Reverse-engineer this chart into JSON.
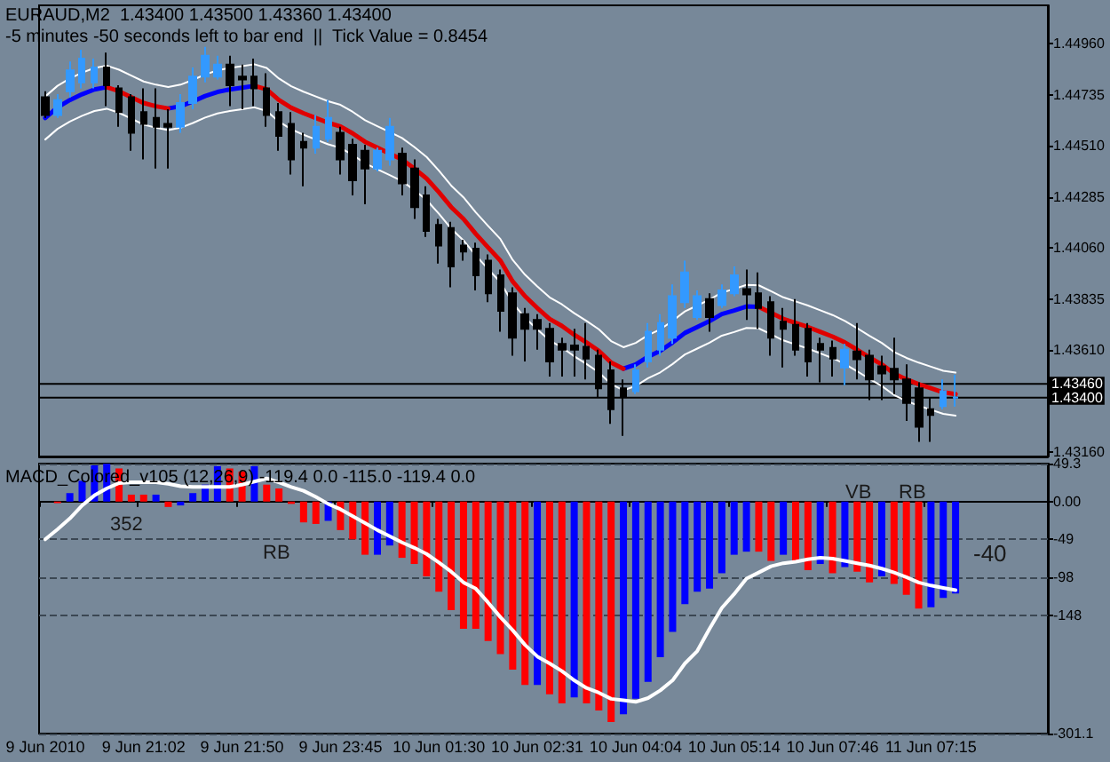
{
  "chart_data": [
    {
      "type": "candlestick",
      "title": "EURAUD,M2  1.43400 1.43500 1.43360 1.43400",
      "subtitle": "-5 minutes -50 seconds left to bar end  ||  Tick Value = 0.8454",
      "categories": [
        null,
        null,
        null,
        null,
        null,
        null,
        null,
        null,
        null,
        null,
        null,
        null,
        null,
        null,
        null,
        null,
        null,
        null,
        null,
        null,
        null,
        null,
        null,
        null,
        null,
        null,
        null,
        null,
        null,
        null,
        null,
        null,
        null,
        null,
        null,
        null,
        null,
        null,
        null,
        null,
        null,
        null,
        null,
        null,
        null,
        null,
        null,
        null,
        null,
        null,
        null,
        null,
        null,
        null,
        null,
        null,
        null,
        null,
        null,
        null,
        null,
        null,
        null,
        null,
        null,
        null,
        null,
        null,
        null,
        null,
        null,
        null,
        null,
        null,
        null
      ],
      "ohlc": [
        [
          1.44725,
          1.44751,
          1.44633,
          1.44646
        ],
        [
          1.44646,
          1.44738,
          1.44633,
          1.44712
        ],
        [
          1.44751,
          1.44882,
          1.44725,
          1.44843
        ],
        [
          1.4479,
          1.44934,
          1.44764,
          1.44895
        ],
        [
          1.4479,
          1.44895,
          1.44764,
          1.44856
        ],
        [
          1.44856,
          1.44921,
          1.44685,
          1.44777
        ],
        [
          1.44764,
          1.44777,
          1.44594,
          1.44659
        ],
        [
          1.44725,
          1.44738,
          1.44489,
          1.44568
        ],
        [
          1.44659,
          1.44764,
          1.4445,
          1.44607
        ],
        [
          1.44633,
          1.44764,
          1.4441,
          1.44594
        ],
        [
          1.44607,
          1.44672,
          1.4441,
          1.44594
        ],
        [
          1.44594,
          1.44738,
          1.44568,
          1.44699
        ],
        [
          1.44699,
          1.44856,
          1.44672,
          1.44816
        ],
        [
          1.44816,
          1.44947,
          1.4479,
          1.44908
        ],
        [
          1.44816,
          1.44908,
          1.44803,
          1.44869
        ],
        [
          1.44869,
          1.44908,
          1.44685,
          1.44777
        ],
        [
          1.44816,
          1.44869,
          1.44672,
          1.44803
        ],
        [
          1.44816,
          1.44895,
          1.44685,
          1.44764
        ],
        [
          1.44764,
          1.4483,
          1.44594,
          1.44646
        ],
        [
          1.44659,
          1.44699,
          1.44489,
          1.44554
        ],
        [
          1.44607,
          1.44659,
          1.44384,
          1.4445
        ],
        [
          1.44528,
          1.44568,
          1.44332,
          1.44502
        ],
        [
          1.44502,
          1.44646,
          1.44476,
          1.44594
        ],
        [
          1.44541,
          1.44712,
          1.44528,
          1.44633
        ],
        [
          1.44568,
          1.44594,
          1.44384,
          1.4445
        ],
        [
          1.44515,
          1.44541,
          1.44292,
          1.44358
        ],
        [
          1.44489,
          1.44515,
          1.44253,
          1.4441
        ],
        [
          1.4441,
          1.44502,
          1.44397,
          1.44489
        ],
        [
          1.4445,
          1.44633,
          1.44423,
          1.44594
        ],
        [
          1.44476,
          1.44502,
          1.44292,
          1.44345
        ],
        [
          1.4441,
          1.4445,
          1.44188,
          1.4424
        ],
        [
          1.44292,
          1.44332,
          1.44109,
          1.44135
        ],
        [
          1.44161,
          1.44188,
          1.43991,
          1.4407
        ],
        [
          1.44148,
          1.44175,
          1.43886,
          1.43978
        ],
        [
          1.4407,
          1.44096,
          1.44004,
          1.44044
        ],
        [
          1.44057,
          1.44083,
          1.43873,
          1.43939
        ],
        [
          1.44004,
          1.44031,
          1.43821,
          1.4386
        ],
        [
          1.43939,
          1.43965,
          1.4369,
          1.43782
        ],
        [
          1.4386,
          1.43886,
          1.43585,
          1.43664
        ],
        [
          1.43768,
          1.43795,
          1.43559,
          1.43703
        ],
        [
          1.43742,
          1.43768,
          1.43611,
          1.43703
        ],
        [
          1.43703,
          1.43729,
          1.43493,
          1.43559
        ],
        [
          1.43637,
          1.43664,
          1.43493,
          1.43611
        ],
        [
          1.4363,
          1.43703,
          1.43493,
          1.43611
        ],
        [
          1.43624,
          1.43729,
          1.4348,
          1.43572
        ],
        [
          1.43585,
          1.43611,
          1.43402,
          1.43441
        ],
        [
          1.4352,
          1.43559,
          1.43284,
          1.43349
        ],
        [
          1.43441,
          1.4348,
          1.43231,
          1.43402
        ],
        [
          1.43428,
          1.43546,
          1.43415,
          1.4352
        ],
        [
          1.43559,
          1.43729,
          1.43533,
          1.4369
        ],
        [
          1.43611,
          1.43768,
          1.43585,
          1.43729
        ],
        [
          1.43664,
          1.43899,
          1.43637,
          1.43847
        ],
        [
          1.43821,
          1.44004,
          1.43795,
          1.43952
        ],
        [
          1.43755,
          1.43873,
          1.43742,
          1.43847
        ],
        [
          1.43834,
          1.4386,
          1.4369,
          1.43755
        ],
        [
          1.43808,
          1.43899,
          1.43795,
          1.43873
        ],
        [
          1.4386,
          1.43978,
          1.43847,
          1.43939
        ],
        [
          1.43878,
          1.43965,
          1.43742,
          1.43855
        ],
        [
          1.4386,
          1.43952,
          1.43703,
          1.43795
        ],
        [
          1.43821,
          1.43847,
          1.43585,
          1.43664
        ],
        [
          1.43734,
          1.43795,
          1.43533,
          1.43703
        ],
        [
          1.43721,
          1.43834,
          1.43585,
          1.43611
        ],
        [
          1.43703,
          1.43729,
          1.43493,
          1.43559
        ],
        [
          1.43637,
          1.43664,
          1.43467,
          1.43611
        ],
        [
          1.43619,
          1.43651,
          1.43493,
          1.43572
        ],
        [
          1.43533,
          1.43637,
          1.43454,
          1.43611
        ],
        [
          1.43603,
          1.43729,
          1.4348,
          1.43569
        ],
        [
          1.43585,
          1.43611,
          1.43389,
          1.4348
        ],
        [
          1.43538,
          1.43585,
          1.43389,
          1.43506
        ],
        [
          1.43527,
          1.43664,
          1.43415,
          1.4348
        ],
        [
          1.4348,
          1.43546,
          1.43297,
          1.43376
        ],
        [
          1.43441,
          1.43467,
          1.43205,
          1.43271
        ],
        [
          1.43349,
          1.43402,
          1.43205,
          1.43323
        ],
        [
          1.43362,
          1.4348,
          1.43349,
          1.43428
        ],
        [
          1.434,
          1.435,
          1.4336,
          1.434
        ]
      ],
      "colors": [
        "#000000",
        "#3399ff",
        "#3399ff",
        "#3399ff",
        "#3399ff",
        "#000000",
        "#000000",
        "#000000",
        "#000000",
        "#000000",
        "#000000",
        "#3399ff",
        "#3399ff",
        "#3399ff",
        "#3399ff",
        "#000000",
        "#000000",
        "#000000",
        "#000000",
        "#000000",
        "#000000",
        "#000000",
        "#3399ff",
        "#3399ff",
        "#000000",
        "#000000",
        "#000000",
        "#3399ff",
        "#3399ff",
        "#000000",
        "#000000",
        "#000000",
        "#000000",
        "#000000",
        "#000000",
        "#000000",
        "#000000",
        "#000000",
        "#000000",
        "#000000",
        "#000000",
        "#000000",
        "#000000",
        "#000000",
        "#000000",
        "#000000",
        "#000000",
        "#000000",
        "#3399ff",
        "#3399ff",
        "#3399ff",
        "#3399ff",
        "#3399ff",
        "#3399ff",
        "#000000",
        "#3399ff",
        "#3399ff",
        "#000000",
        "#000000",
        "#000000",
        "#000000",
        "#000000",
        "#000000",
        "#000000",
        "#000000",
        "#3399ff",
        "#000000",
        "#000000",
        "#000000",
        "#000000",
        "#000000",
        "#000000",
        "#000000",
        "#3399ff",
        "#3399ff"
      ],
      "series": [
        {
          "type": "line",
          "color": "#0000ff",
          "values": [
            1.44633,
            1.4468,
            1.44712,
            1.44738,
            1.44759,
            1.44769,
            null,
            null,
            null,
            null,
            1.44675,
            1.44685,
            1.44706,
            1.4473,
            1.44748,
            1.44759,
            1.44767,
            1.44775,
            null,
            null,
            null,
            null,
            null,
            null,
            null,
            null,
            null,
            null,
            null,
            null,
            null,
            null,
            null,
            null,
            null,
            null,
            null,
            null,
            null,
            null,
            null,
            null,
            null,
            null,
            null,
            null,
            null,
            1.43527,
            1.43546,
            1.4358,
            1.43606,
            1.43643,
            1.43685,
            1.43711,
            1.43737,
            1.43768,
            1.43784,
            1.43802,
            1.438,
            null,
            null,
            null,
            null,
            null,
            null,
            null,
            null,
            null,
            null,
            null,
            null,
            null,
            null,
            null,
            null
          ]
        },
        {
          "type": "line",
          "color": "#e00000",
          "values": [
            null,
            null,
            null,
            null,
            null,
            1.44769,
            1.44751,
            1.44725,
            1.44699,
            1.44685,
            1.44675,
            null,
            null,
            null,
            null,
            null,
            null,
            1.44775,
            1.44759,
            1.44712,
            1.44678,
            1.44654,
            1.44633,
            1.44612,
            1.44596,
            1.44565,
            1.44528,
            1.44502,
            1.44476,
            1.4445,
            1.4441,
            1.44366,
            1.44306,
            1.4424,
            1.44188,
            1.44122,
            1.44062,
            1.44004,
            1.43912,
            1.43847,
            1.43795,
            1.43747,
            1.43716,
            1.43677,
            1.43643,
            1.43606,
            1.43554,
            1.43527,
            null,
            null,
            null,
            null,
            null,
            null,
            null,
            null,
            null,
            null,
            1.438,
            1.43774,
            1.43747,
            1.43729,
            1.43711,
            1.4369,
            1.43669,
            1.43643,
            1.43611,
            1.43577,
            1.43546,
            1.43506,
            1.4348,
            1.43459,
            1.43441,
            1.43423,
            1.43415
          ]
        },
        {
          "type": "line",
          "color": "#ffffff",
          "values": [
            1.44728,
            1.44775,
            1.44807,
            1.44833,
            1.44854,
            1.44864,
            1.44846,
            1.4482,
            1.44794,
            1.4478,
            1.4477,
            1.4478,
            1.44801,
            1.44825,
            1.44843,
            1.44854,
            1.44862,
            1.4487,
            1.44854,
            1.44807,
            1.44773,
            1.44749,
            1.44728,
            1.44707,
            1.44691,
            1.4466,
            1.44623,
            1.44597,
            1.44571,
            1.44545,
            1.44505,
            1.44461,
            1.44401,
            1.44335,
            1.44283,
            1.44217,
            1.44157,
            1.44099,
            1.44007,
            1.43942,
            1.4389,
            1.43842,
            1.43811,
            1.43772,
            1.43738,
            1.43701,
            1.43649,
            1.43622,
            1.43641,
            1.43675,
            1.43701,
            1.43738,
            1.4378,
            1.43806,
            1.43832,
            1.43863,
            1.43879,
            1.43897,
            1.43895,
            1.43869,
            1.43842,
            1.43824,
            1.43806,
            1.43785,
            1.43764,
            1.43738,
            1.43706,
            1.43672,
            1.43641,
            1.43601,
            1.43575,
            1.43554,
            1.43536,
            1.43518,
            1.4351
          ]
        },
        {
          "type": "line",
          "color": "#ffffff",
          "values": [
            1.44538,
            1.44585,
            1.44617,
            1.44643,
            1.44664,
            1.44674,
            1.44656,
            1.4463,
            1.44604,
            1.4459,
            1.4458,
            1.4459,
            1.44611,
            1.44635,
            1.44653,
            1.44664,
            1.44672,
            1.4468,
            1.44664,
            1.44617,
            1.44583,
            1.44559,
            1.44538,
            1.44517,
            1.44501,
            1.4447,
            1.44433,
            1.44407,
            1.44381,
            1.44355,
            1.44315,
            1.44271,
            1.44211,
            1.44145,
            1.44093,
            1.44027,
            1.43967,
            1.43909,
            1.43817,
            1.43752,
            1.437,
            1.43652,
            1.43621,
            1.43582,
            1.43548,
            1.43511,
            1.43459,
            1.43432,
            1.43451,
            1.43485,
            1.43511,
            1.43548,
            1.4359,
            1.43616,
            1.43642,
            1.43673,
            1.43689,
            1.43707,
            1.43705,
            1.43679,
            1.43652,
            1.43634,
            1.43616,
            1.43595,
            1.43574,
            1.43548,
            1.43516,
            1.43482,
            1.43451,
            1.43411,
            1.43385,
            1.43364,
            1.43346,
            1.43328,
            1.4332
          ]
        }
      ],
      "ylim": [
        1.4314,
        1.4513
      ],
      "yticks": [
        {
          "value": 1.4316,
          "label": "1.43160"
        },
        {
          "value": 1.4361,
          "label": "1.43610"
        },
        {
          "value": 1.43835,
          "label": "1.43835"
        },
        {
          "value": 1.4406,
          "label": "1.44060"
        },
        {
          "value": 1.44285,
          "label": "1.44285"
        },
        {
          "value": 1.4451,
          "label": "1.44510"
        },
        {
          "value": 1.44735,
          "label": "1.44735"
        },
        {
          "value": 1.4496,
          "label": "1.44960"
        }
      ],
      "ref_lines": [
        {
          "axis": "y",
          "value": 1.4346,
          "label": "1.43460",
          "color": "#000000"
        },
        {
          "axis": "y",
          "value": 1.434,
          "label": "1.43400",
          "color": "#000000"
        }
      ],
      "tick_labels": "y",
      "marker": "none"
    },
    {
      "type": "bar",
      "title": "MACD_Colored_v105 (12,26,9) -119.4 0.0 -115.0 -119.4 0.0",
      "categories": [
        "9 Jun 2010",
        null,
        null,
        null,
        null,
        null,
        null,
        null,
        "9 Jun 21:02",
        null,
        null,
        null,
        null,
        null,
        null,
        null,
        "9 Jun 21:50",
        null,
        null,
        null,
        null,
        null,
        null,
        null,
        "9 Jun 23:45",
        null,
        null,
        null,
        null,
        null,
        null,
        null,
        "10 Jun 01:30",
        null,
        null,
        null,
        null,
        null,
        null,
        null,
        "10 Jun 02:31",
        null,
        null,
        null,
        null,
        null,
        null,
        null,
        "10 Jun 04:04",
        null,
        null,
        null,
        null,
        null,
        null,
        null,
        "10 Jun 05:14",
        null,
        null,
        null,
        null,
        null,
        null,
        null,
        "10 Jun 07:46",
        null,
        null,
        null,
        null,
        null,
        null,
        null,
        "11 Jun 07:15",
        null,
        null
      ],
      "series": [
        {
          "type": "bar",
          "values": [
            null,
            -2,
            11,
            27,
            47,
            49,
            43,
            9,
            9,
            9,
            -7,
            -5,
            11,
            22,
            46,
            43,
            39,
            46,
            22,
            17,
            -3,
            -27,
            -29,
            -25,
            -37,
            -49,
            -69,
            -69,
            -57,
            -73,
            -81,
            -97,
            -117,
            -141,
            -165,
            -165,
            -181,
            -198,
            -218,
            -238,
            -238,
            -250,
            -262,
            -254,
            -262,
            -271,
            -286,
            -276,
            -256,
            -234,
            -202,
            -169,
            -133,
            -117,
            -113,
            -93,
            -69,
            -65,
            -65,
            -77,
            -69,
            -77,
            -89,
            -81,
            -93,
            -85,
            -91,
            -105,
            -97,
            -107,
            -121,
            -139,
            -137,
            -125,
            -119.4
          ],
          "colors": [
            "#ff0000",
            "#ff0000",
            "#0000ff",
            "#0000ff",
            "#0000ff",
            "#0000ff",
            "#ff0000",
            "#ff0000",
            "#ff0000",
            "#0000ff",
            "#ff0000",
            "#0000ff",
            "#0000ff",
            "#0000ff",
            "#0000ff",
            "#ff0000",
            "#ff0000",
            "#0000ff",
            "#ff0000",
            "#ff0000",
            "#ff0000",
            "#ff0000",
            "#ff0000",
            "#0000ff",
            "#ff0000",
            "#ff0000",
            "#ff0000",
            "#0000ff",
            "#0000ff",
            "#ff0000",
            "#ff0000",
            "#ff0000",
            "#ff0000",
            "#ff0000",
            "#ff0000",
            "#ff0000",
            "#ff0000",
            "#ff0000",
            "#ff0000",
            "#ff0000",
            "#0000ff",
            "#ff0000",
            "#ff0000",
            "#0000ff",
            "#ff0000",
            "#ff0000",
            "#ff0000",
            "#0000ff",
            "#0000ff",
            "#0000ff",
            "#0000ff",
            "#0000ff",
            "#0000ff",
            "#0000ff",
            "#0000ff",
            "#0000ff",
            "#0000ff",
            "#0000ff",
            "#ff0000",
            "#ff0000",
            "#0000ff",
            "#ff0000",
            "#ff0000",
            "#0000ff",
            "#ff0000",
            "#0000ff",
            "#ff0000",
            "#ff0000",
            "#0000ff",
            "#ff0000",
            "#ff0000",
            "#ff0000",
            "#0000ff",
            "#0000ff",
            "#0000ff"
          ]
        },
        {
          "type": "line",
          "color": "#ffffff",
          "values": [
            -49,
            -36,
            -22,
            -5,
            8,
            17,
            24,
            25,
            25,
            25,
            23,
            20,
            19,
            19,
            19,
            19,
            22,
            26,
            30,
            25,
            19,
            14,
            6,
            -3,
            -10,
            -19,
            -28,
            -37,
            -45,
            -53,
            -60,
            -68,
            -79,
            -91,
            -105,
            -113,
            -131,
            -150,
            -167,
            -186,
            -201,
            -210,
            -220,
            -232,
            -242,
            -248,
            -256,
            -258,
            -260,
            -255,
            -245,
            -232,
            -210,
            -194,
            -165,
            -138,
            -120,
            -100,
            -92,
            -84,
            -80,
            -78,
            -75,
            -73,
            -74,
            -77,
            -80,
            -83,
            -87,
            -92,
            -98,
            -105,
            -109,
            -112,
            -115.0
          ]
        }
      ],
      "ylim": [
        -301.1,
        49.3
      ],
      "yticks": [
        -301.1,
        -148,
        -98,
        -49,
        {
          "value": 0,
          "label": "0.00"
        },
        49.3
      ],
      "grid": "y",
      "marker": "none",
      "annotations": [
        "352",
        "RB",
        "VB",
        "RB",
        "-40"
      ]
    }
  ]
}
